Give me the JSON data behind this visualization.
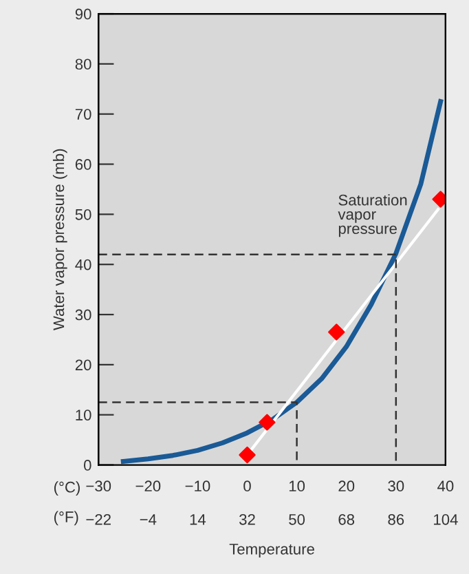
{
  "chart_data": {
    "type": "line",
    "xlabel": "Temperature",
    "ylabel": "Water vapor pressure (mb)",
    "xlim": [
      -30,
      40
    ],
    "xticks": [
      {
        "value": -30,
        "label": "−30"
      },
      {
        "value": -20,
        "label": "−20"
      },
      {
        "value": -10,
        "label": "−10"
      },
      0,
      10,
      20,
      30,
      40
    ],
    "x2lim": [
      -22,
      104
    ],
    "x2ticks": [
      {
        "value": -22,
        "label": "−22"
      },
      {
        "value": -4,
        "label": "−4"
      },
      14,
      32,
      50,
      68,
      86,
      104
    ],
    "ylim": [
      0,
      90
    ],
    "yticks": [
      0,
      10,
      20,
      30,
      40,
      50,
      60,
      70,
      80,
      90
    ],
    "grid": false,
    "series": [
      {
        "name": "Saturation\nvapor\npressure",
        "color": "#1a5a96",
        "x": [
          -25,
          -20,
          -15,
          -10,
          -5,
          0,
          5,
          10,
          15,
          20,
          25,
          30,
          35,
          39
        ],
        "values": [
          0.7,
          1.2,
          1.9,
          2.9,
          4.4,
          6.4,
          9,
          12.5,
          17.2,
          23.6,
          32,
          42.2,
          56,
          72.5
        ]
      },
      {
        "color": "#ffffff",
        "x": [
          0,
          38.5
        ],
        "values": [
          2,
          51
        ]
      },
      {
        "type": "scatter",
        "marker": "diamond",
        "color": "#ff0000",
        "x": [
          0,
          4,
          18,
          39
        ],
        "values": [
          2,
          8.5,
          26.5,
          53
        ]
      },
      {
        "color": "#333333",
        "line_style": "dashed",
        "x": [
          -30,
          10,
          10
        ],
        "values": [
          12.5,
          12.5,
          0
        ]
      },
      {
        "color": "#333333",
        "line_style": "dashed",
        "x": [
          -30,
          30,
          30
        ],
        "values": [
          42,
          42,
          0
        ]
      }
    ],
    "annotations": [
      "(°C)",
      "(°F)"
    ]
  }
}
